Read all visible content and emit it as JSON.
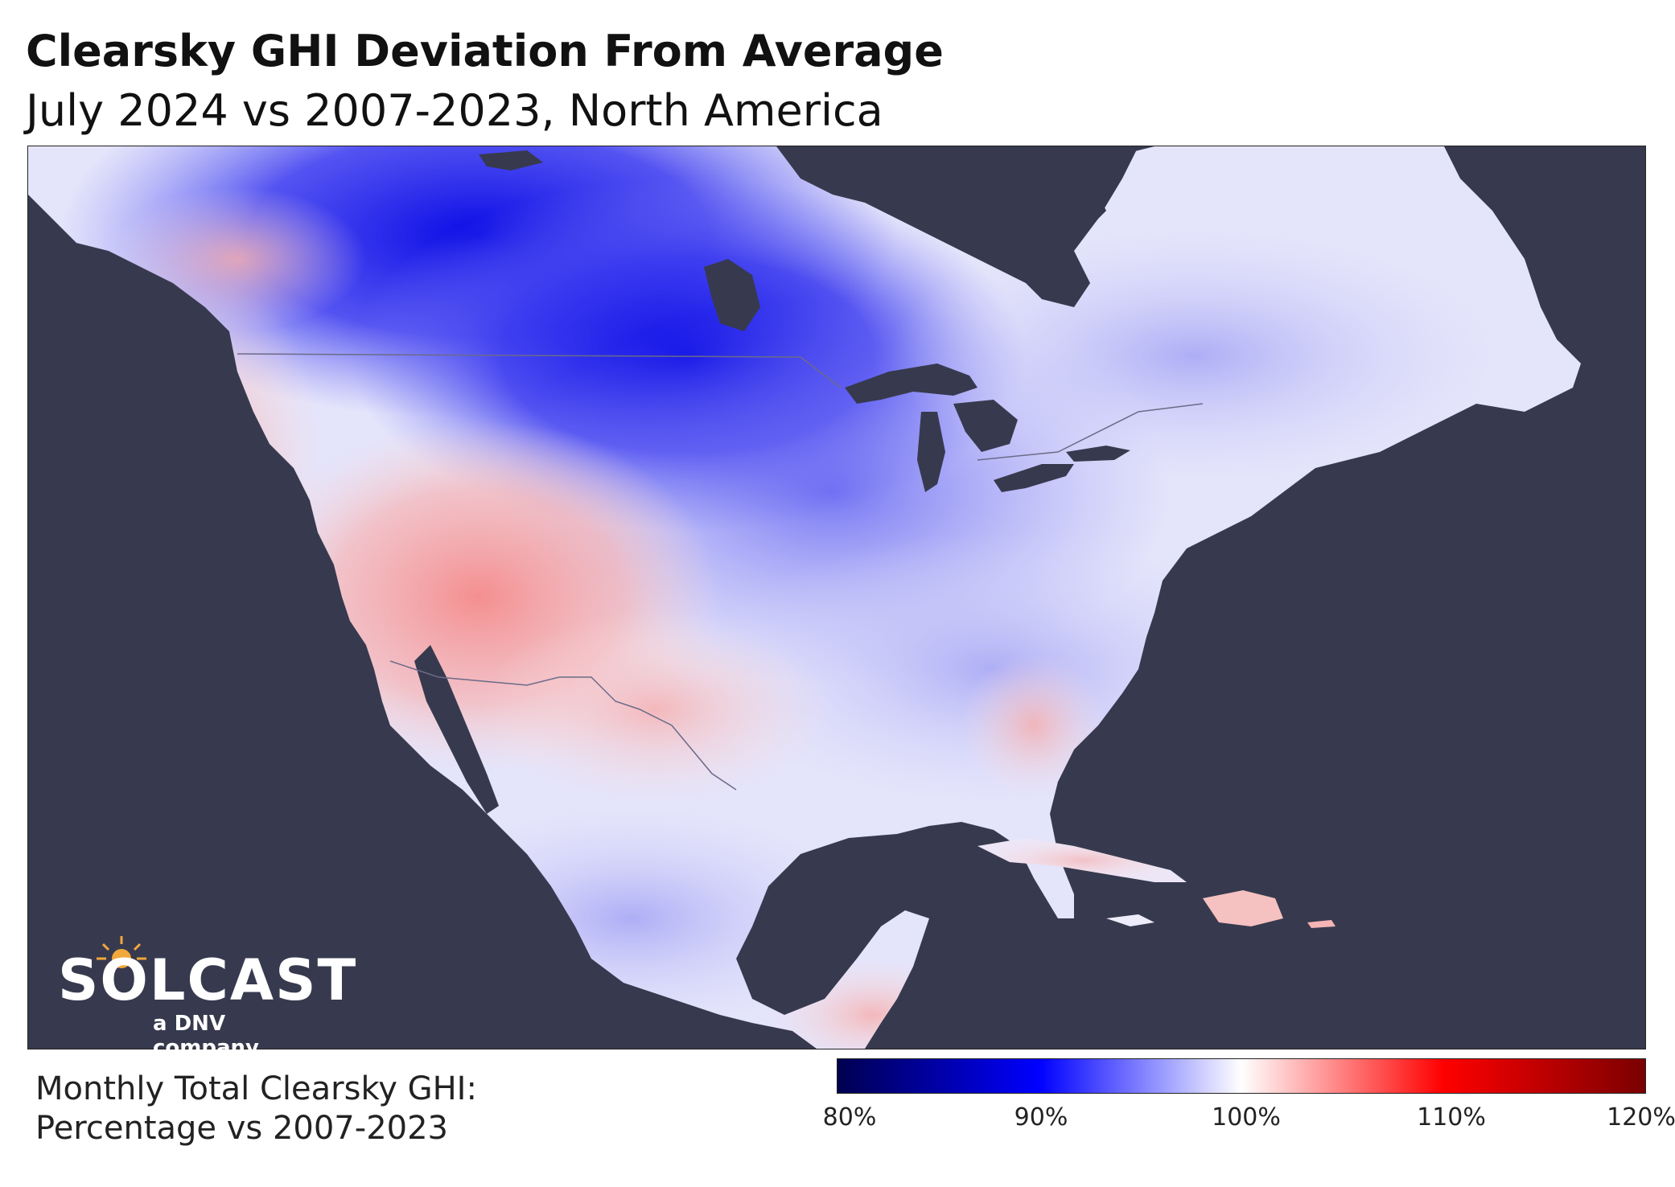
{
  "title": "Clearsky GHI Deviation From Average",
  "subtitle": "July 2024 vs 2007-2023, North America",
  "legend": {
    "label_line1": "Monthly Total Clearsky GHI:",
    "label_line2": "Percentage vs 2007-2023",
    "ticks": [
      "80%",
      "90%",
      "100%",
      "110%",
      "120%"
    ],
    "colors": [
      "#000050",
      "#0000ff",
      "#ffffff",
      "#ff0000",
      "#7a0000"
    ]
  },
  "logo": {
    "wordmark": "SOLCAST",
    "tagline": "a DNV company"
  },
  "colors": {
    "ocean": "#373a4e",
    "deficit": "#2a2af0",
    "surplus": "#f4a0a0",
    "neutral": "#f2f2ff"
  }
}
